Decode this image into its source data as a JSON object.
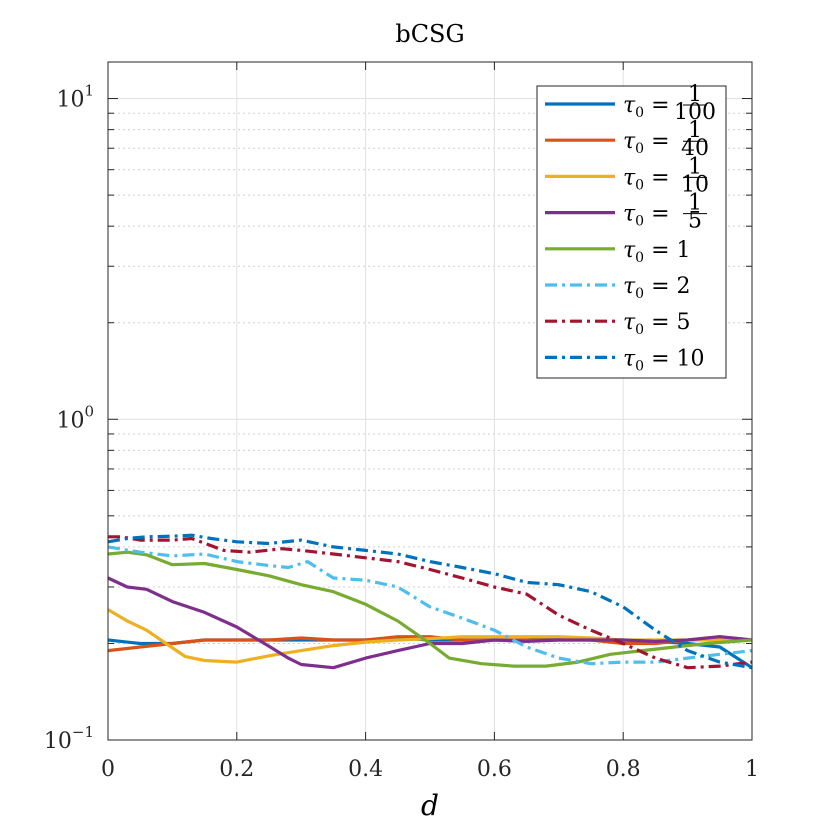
{
  "chart_data": {
    "type": "line",
    "title": "bCSG",
    "xlabel": "d",
    "ylabel": "",
    "xlim": [
      0,
      1
    ],
    "ylim": [
      0.1,
      13
    ],
    "yscale": "log",
    "x_ticks": [
      "0",
      "0.2",
      "0.4",
      "0.6",
      "0.8",
      "1"
    ],
    "y_ticks": [
      {
        "base": "10",
        "exp": "1"
      },
      {
        "base": "10",
        "exp": "0"
      },
      {
        "base": "10",
        "exp": "−1"
      }
    ],
    "grid": true,
    "minor_grid": true,
    "legend_position": "top-right",
    "legend_labels": [
      {
        "prefix": "τ",
        "sub": "0",
        "eq": "=",
        "num": "1",
        "den": "100"
      },
      {
        "prefix": "τ",
        "sub": "0",
        "eq": "=",
        "num": "1",
        "den": "40"
      },
      {
        "prefix": "τ",
        "sub": "0",
        "eq": "=",
        "num": "1",
        "den": "10"
      },
      {
        "prefix": "τ",
        "sub": "0",
        "eq": "=",
        "num": "1",
        "den": "5"
      },
      {
        "prefix": "τ",
        "sub": "0",
        "eq": "=",
        "val": "1"
      },
      {
        "prefix": "τ",
        "sub": "0",
        "eq": "=",
        "val": "2"
      },
      {
        "prefix": "τ",
        "sub": "0",
        "eq": "=",
        "val": "5"
      },
      {
        "prefix": "τ",
        "sub": "0",
        "eq": "=",
        "val": "10"
      }
    ],
    "series": [
      {
        "name": "tau0 = 1/100",
        "color": "#0072BD",
        "dash": "solid",
        "points": [
          [
            0,
            0.205
          ],
          [
            0.05,
            0.2
          ],
          [
            0.1,
            0.2
          ],
          [
            0.15,
            0.205
          ],
          [
            0.2,
            0.205
          ],
          [
            0.25,
            0.205
          ],
          [
            0.3,
            0.205
          ],
          [
            0.35,
            0.205
          ],
          [
            0.4,
            0.205
          ],
          [
            0.45,
            0.208
          ],
          [
            0.5,
            0.205
          ],
          [
            0.55,
            0.205
          ],
          [
            0.6,
            0.205
          ],
          [
            0.65,
            0.205
          ],
          [
            0.7,
            0.208
          ],
          [
            0.75,
            0.205
          ],
          [
            0.8,
            0.205
          ],
          [
            0.85,
            0.203
          ],
          [
            0.9,
            0.2
          ],
          [
            0.95,
            0.195
          ],
          [
            1.0,
            0.168
          ]
        ]
      },
      {
        "name": "tau0 = 1/40",
        "color": "#D95319",
        "dash": "solid",
        "points": [
          [
            0,
            0.19
          ],
          [
            0.05,
            0.195
          ],
          [
            0.1,
            0.2
          ],
          [
            0.15,
            0.205
          ],
          [
            0.2,
            0.205
          ],
          [
            0.25,
            0.205
          ],
          [
            0.3,
            0.208
          ],
          [
            0.35,
            0.205
          ],
          [
            0.4,
            0.205
          ],
          [
            0.45,
            0.21
          ],
          [
            0.5,
            0.21
          ],
          [
            0.55,
            0.205
          ],
          [
            0.6,
            0.205
          ],
          [
            0.65,
            0.205
          ],
          [
            0.7,
            0.205
          ],
          [
            0.75,
            0.205
          ],
          [
            0.8,
            0.2
          ],
          [
            0.85,
            0.2
          ],
          [
            0.9,
            0.205
          ],
          [
            0.95,
            0.21
          ],
          [
            1.0,
            0.205
          ]
        ]
      },
      {
        "name": "tau0 = 1/10",
        "color": "#EDB120",
        "dash": "solid",
        "points": [
          [
            0,
            0.255
          ],
          [
            0.03,
            0.235
          ],
          [
            0.06,
            0.22
          ],
          [
            0.09,
            0.2
          ],
          [
            0.12,
            0.182
          ],
          [
            0.15,
            0.177
          ],
          [
            0.2,
            0.175
          ],
          [
            0.25,
            0.183
          ],
          [
            0.3,
            0.19
          ],
          [
            0.35,
            0.197
          ],
          [
            0.4,
            0.202
          ],
          [
            0.45,
            0.205
          ],
          [
            0.5,
            0.207
          ],
          [
            0.55,
            0.21
          ],
          [
            0.6,
            0.21
          ],
          [
            0.65,
            0.21
          ],
          [
            0.7,
            0.21
          ],
          [
            0.75,
            0.208
          ],
          [
            0.8,
            0.205
          ],
          [
            0.85,
            0.205
          ],
          [
            0.9,
            0.205
          ],
          [
            0.95,
            0.205
          ],
          [
            1.0,
            0.205
          ]
        ]
      },
      {
        "name": "tau0 = 1/5",
        "color": "#7E2F8E",
        "dash": "solid",
        "points": [
          [
            0,
            0.32
          ],
          [
            0.03,
            0.3
          ],
          [
            0.06,
            0.295
          ],
          [
            0.1,
            0.27
          ],
          [
            0.15,
            0.25
          ],
          [
            0.2,
            0.225
          ],
          [
            0.25,
            0.196
          ],
          [
            0.28,
            0.18
          ],
          [
            0.3,
            0.172
          ],
          [
            0.35,
            0.168
          ],
          [
            0.4,
            0.18
          ],
          [
            0.45,
            0.19
          ],
          [
            0.5,
            0.2
          ],
          [
            0.55,
            0.2
          ],
          [
            0.6,
            0.205
          ],
          [
            0.65,
            0.203
          ],
          [
            0.7,
            0.205
          ],
          [
            0.75,
            0.205
          ],
          [
            0.8,
            0.205
          ],
          [
            0.85,
            0.203
          ],
          [
            0.9,
            0.205
          ],
          [
            0.95,
            0.21
          ],
          [
            1.0,
            0.205
          ]
        ]
      },
      {
        "name": "tau0 = 1",
        "color": "#77AC30",
        "dash": "solid",
        "points": [
          [
            0,
            0.38
          ],
          [
            0.03,
            0.385
          ],
          [
            0.06,
            0.378
          ],
          [
            0.1,
            0.352
          ],
          [
            0.15,
            0.355
          ],
          [
            0.2,
            0.34
          ],
          [
            0.25,
            0.325
          ],
          [
            0.3,
            0.305
          ],
          [
            0.35,
            0.29
          ],
          [
            0.4,
            0.265
          ],
          [
            0.45,
            0.235
          ],
          [
            0.5,
            0.2
          ],
          [
            0.53,
            0.18
          ],
          [
            0.58,
            0.173
          ],
          [
            0.63,
            0.17
          ],
          [
            0.68,
            0.17
          ],
          [
            0.73,
            0.175
          ],
          [
            0.78,
            0.185
          ],
          [
            0.83,
            0.19
          ],
          [
            0.88,
            0.195
          ],
          [
            0.93,
            0.2
          ],
          [
            1.0,
            0.205
          ]
        ]
      },
      {
        "name": "tau0 = 2",
        "color": "#4DBEEE",
        "dash": "dashdot",
        "points": [
          [
            0,
            0.4
          ],
          [
            0.05,
            0.385
          ],
          [
            0.1,
            0.375
          ],
          [
            0.15,
            0.38
          ],
          [
            0.2,
            0.36
          ],
          [
            0.25,
            0.35
          ],
          [
            0.28,
            0.345
          ],
          [
            0.31,
            0.36
          ],
          [
            0.35,
            0.32
          ],
          [
            0.4,
            0.315
          ],
          [
            0.45,
            0.3
          ],
          [
            0.5,
            0.26
          ],
          [
            0.55,
            0.24
          ],
          [
            0.6,
            0.22
          ],
          [
            0.65,
            0.195
          ],
          [
            0.7,
            0.18
          ],
          [
            0.75,
            0.173
          ],
          [
            0.8,
            0.175
          ],
          [
            0.85,
            0.175
          ],
          [
            0.9,
            0.18
          ],
          [
            0.95,
            0.185
          ],
          [
            1.0,
            0.19
          ]
        ]
      },
      {
        "name": "tau0 = 5",
        "color": "#A2142F",
        "dash": "dashdot",
        "points": [
          [
            0,
            0.43
          ],
          [
            0.02,
            0.43
          ],
          [
            0.05,
            0.42
          ],
          [
            0.1,
            0.42
          ],
          [
            0.13,
            0.425
          ],
          [
            0.18,
            0.39
          ],
          [
            0.22,
            0.385
          ],
          [
            0.27,
            0.395
          ],
          [
            0.3,
            0.39
          ],
          [
            0.35,
            0.38
          ],
          [
            0.4,
            0.37
          ],
          [
            0.45,
            0.36
          ],
          [
            0.5,
            0.34
          ],
          [
            0.55,
            0.32
          ],
          [
            0.6,
            0.3
          ],
          [
            0.65,
            0.285
          ],
          [
            0.7,
            0.245
          ],
          [
            0.75,
            0.22
          ],
          [
            0.8,
            0.2
          ],
          [
            0.85,
            0.18
          ],
          [
            0.9,
            0.168
          ],
          [
            0.95,
            0.17
          ],
          [
            1.0,
            0.175
          ]
        ]
      },
      {
        "name": "tau0 = 10",
        "color": "#0072BD",
        "dash": "dashdot",
        "points": [
          [
            0,
            0.415
          ],
          [
            0.03,
            0.425
          ],
          [
            0.06,
            0.43
          ],
          [
            0.1,
            0.432
          ],
          [
            0.13,
            0.435
          ],
          [
            0.16,
            0.425
          ],
          [
            0.2,
            0.415
          ],
          [
            0.25,
            0.41
          ],
          [
            0.3,
            0.42
          ],
          [
            0.35,
            0.4
          ],
          [
            0.4,
            0.39
          ],
          [
            0.45,
            0.38
          ],
          [
            0.5,
            0.36
          ],
          [
            0.55,
            0.345
          ],
          [
            0.6,
            0.33
          ],
          [
            0.65,
            0.31
          ],
          [
            0.7,
            0.305
          ],
          [
            0.75,
            0.29
          ],
          [
            0.8,
            0.26
          ],
          [
            0.85,
            0.22
          ],
          [
            0.9,
            0.19
          ],
          [
            0.95,
            0.175
          ],
          [
            1.0,
            0.168
          ]
        ]
      }
    ]
  }
}
